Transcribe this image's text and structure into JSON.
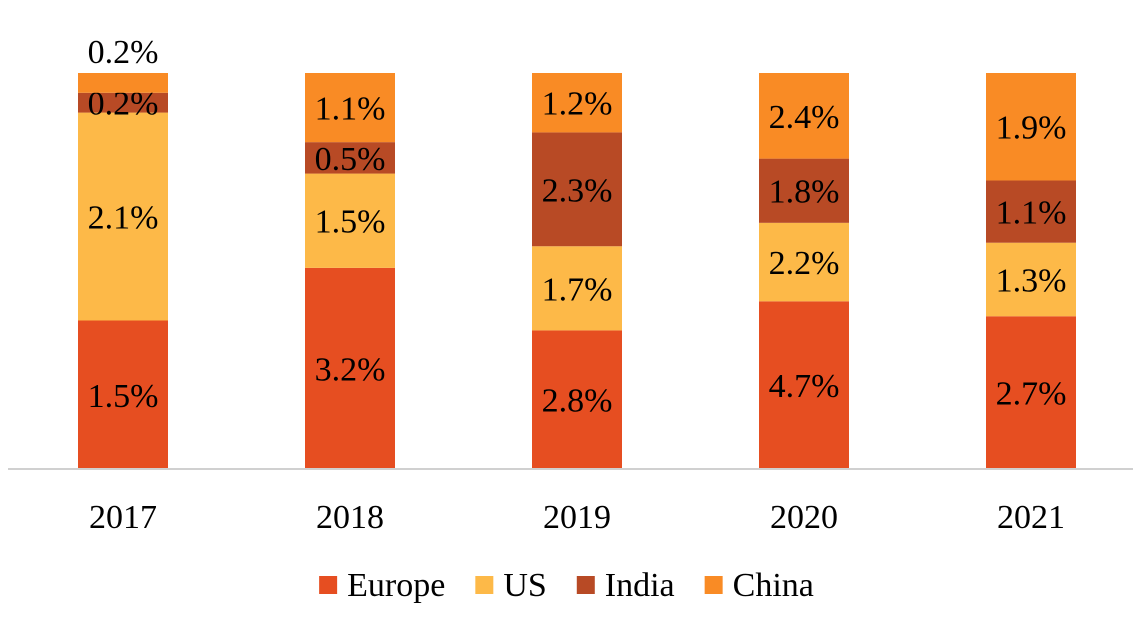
{
  "chart_data": {
    "type": "bar",
    "stacked": "100%",
    "categories": [
      "2017",
      "2018",
      "2019",
      "2020",
      "2021"
    ],
    "series": [
      {
        "name": "Europe",
        "color": "#E64E21",
        "values": [
          1.5,
          3.2,
          2.8,
          4.7,
          2.7
        ],
        "labels": [
          "1.5%",
          "3.2%",
          "2.8%",
          "4.7%",
          "2.7%"
        ]
      },
      {
        "name": "US",
        "color": "#FDB948",
        "values": [
          2.1,
          1.5,
          1.7,
          2.2,
          1.3
        ],
        "labels": [
          "2.1%",
          "1.5%",
          "1.7%",
          "2.2%",
          "1.3%"
        ]
      },
      {
        "name": "India",
        "color": "#B84A25",
        "values": [
          0.2,
          0.5,
          2.3,
          1.8,
          1.1
        ],
        "labels": [
          "0.2%",
          "0.5%",
          "2.3%",
          "1.8%",
          "1.1%"
        ]
      },
      {
        "name": "China",
        "color": "#F98B25",
        "values": [
          0.2,
          1.1,
          1.2,
          2.4,
          1.9
        ],
        "labels": [
          "0.2%",
          "1.1%",
          "1.2%",
          "2.4%",
          "1.9%"
        ]
      }
    ],
    "title": "",
    "xlabel": "",
    "ylabel": "",
    "grid": false,
    "legend_position": "bottom"
  }
}
